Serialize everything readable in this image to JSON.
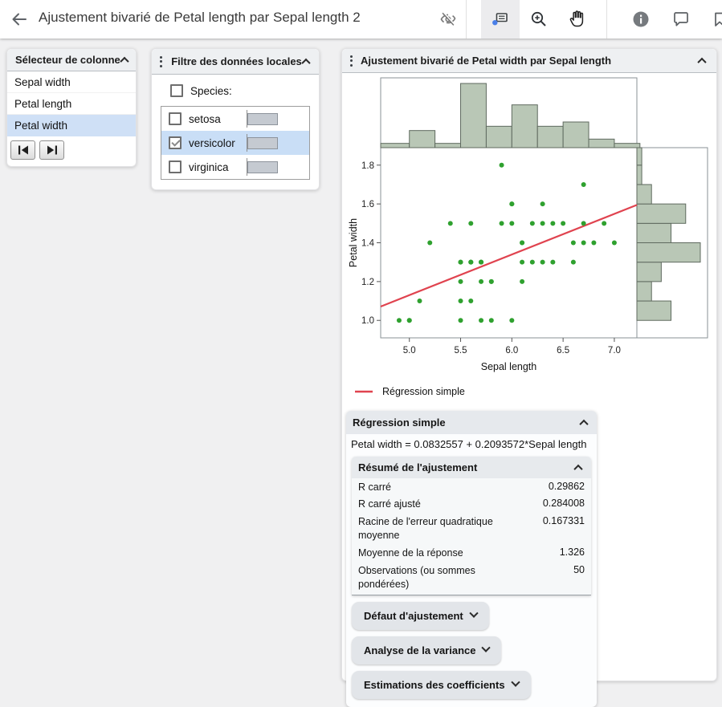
{
  "topbar": {
    "title": "Ajustement bivarié de Petal length par Sepal length 2",
    "icons": [
      "back-arrow",
      "eye-off",
      "annotation-tool",
      "zoom-in-tool",
      "hand-tool",
      "info",
      "comment",
      "bookmark"
    ]
  },
  "column_selector": {
    "title": "Sélecteur de colonne",
    "items": [
      "Sepal width",
      "Petal length",
      "Petal width"
    ],
    "selected": "Petal width",
    "nav_buttons": [
      "first",
      "last"
    ]
  },
  "local_filter": {
    "title": "Filtre des données locales",
    "group_label": "Species:",
    "group_checked": false,
    "items": [
      {
        "label": "setosa",
        "checked": false,
        "selected": false
      },
      {
        "label": "versicolor",
        "checked": true,
        "selected": true
      },
      {
        "label": "virginica",
        "checked": false,
        "selected": false
      }
    ]
  },
  "report": {
    "title": "Ajustement bivarié de Petal width par Sepal length",
    "fit_panel": {
      "title": "Régression simple",
      "equation": "Petal width = 0.0832557 + 0.2093572*Sepal length",
      "summary": {
        "title": "Résumé de l'ajustement",
        "rows": [
          [
            "R carré",
            "0.29862"
          ],
          [
            "R carré ajusté",
            "0.284008"
          ],
          [
            "Racine de l'erreur quadratique moyenne",
            "0.167331"
          ],
          [
            "Moyenne de la réponse",
            "1.326"
          ],
          [
            "Observations (ou sommes pondérées)",
            "50"
          ]
        ]
      },
      "collapsed_sections": [
        "Défaut d'ajustement",
        "Analyse de la variance",
        "Estimations des coefficients"
      ]
    }
  },
  "chart_data": {
    "type": "scatter",
    "title": "Ajustement bivarié de Petal width par Sepal length",
    "xlabel": "Sepal length",
    "ylabel": "Petal width",
    "xlim": [
      4.72,
      7.22
    ],
    "ylim": [
      0.91,
      1.89
    ],
    "x_ticks": [
      5.0,
      5.5,
      6.0,
      6.5,
      7.0
    ],
    "y_ticks": [
      1.0,
      1.2,
      1.4,
      1.6,
      1.8
    ],
    "grid": false,
    "legend_position": "bottom-left",
    "legend": [
      {
        "label": "Régression simple",
        "color": "#e0434f"
      }
    ],
    "series": [
      {
        "name": "versicolor",
        "color": "#2fa12f",
        "points": [
          [
            7.0,
            1.4
          ],
          [
            6.4,
            1.5
          ],
          [
            6.9,
            1.5
          ],
          [
            5.5,
            1.3
          ],
          [
            6.5,
            1.5
          ],
          [
            5.7,
            1.3
          ],
          [
            6.3,
            1.6
          ],
          [
            4.9,
            1.0
          ],
          [
            6.6,
            1.3
          ],
          [
            5.2,
            1.4
          ],
          [
            5.0,
            1.0
          ],
          [
            5.9,
            1.5
          ],
          [
            6.0,
            1.0
          ],
          [
            6.1,
            1.4
          ],
          [
            5.6,
            1.3
          ],
          [
            6.7,
            1.4
          ],
          [
            5.6,
            1.5
          ],
          [
            5.8,
            1.0
          ],
          [
            6.2,
            1.5
          ],
          [
            5.6,
            1.1
          ],
          [
            5.9,
            1.8
          ],
          [
            6.1,
            1.3
          ],
          [
            6.3,
            1.5
          ],
          [
            6.1,
            1.2
          ],
          [
            6.4,
            1.3
          ],
          [
            6.6,
            1.4
          ],
          [
            6.8,
            1.4
          ],
          [
            6.7,
            1.7
          ],
          [
            6.0,
            1.5
          ],
          [
            5.7,
            1.0
          ],
          [
            5.5,
            1.1
          ],
          [
            5.5,
            1.0
          ],
          [
            5.8,
            1.2
          ],
          [
            6.0,
            1.6
          ],
          [
            5.4,
            1.5
          ],
          [
            6.0,
            1.6
          ],
          [
            6.7,
            1.5
          ],
          [
            6.3,
            1.3
          ],
          [
            5.6,
            1.3
          ],
          [
            5.5,
            1.3
          ],
          [
            5.5,
            1.2
          ],
          [
            6.1,
            1.4
          ],
          [
            5.8,
            1.2
          ],
          [
            5.0,
            1.0
          ],
          [
            5.6,
            1.3
          ],
          [
            5.7,
            1.2
          ],
          [
            5.7,
            1.3
          ],
          [
            6.2,
            1.3
          ],
          [
            5.1,
            1.1
          ],
          [
            5.7,
            1.3
          ]
        ]
      }
    ],
    "regression_line": {
      "label": "Régression simple",
      "color": "#e0434f",
      "intercept": 0.0832557,
      "slope": 0.2093572
    },
    "x_histogram": {
      "bin_start": 4.75,
      "bin_width": 0.25,
      "counts": [
        1,
        4,
        1,
        15,
        5,
        10,
        5,
        6,
        2,
        1
      ]
    },
    "y_histogram": {
      "bin_start": 1.0,
      "bin_width": 0.1,
      "counts": [
        7,
        3,
        5,
        13,
        7,
        10,
        3,
        1,
        1
      ]
    },
    "histogram_fill": "#b9c7b6",
    "histogram_stroke": "#5f6a5f",
    "frame_color": "#8a9296"
  }
}
